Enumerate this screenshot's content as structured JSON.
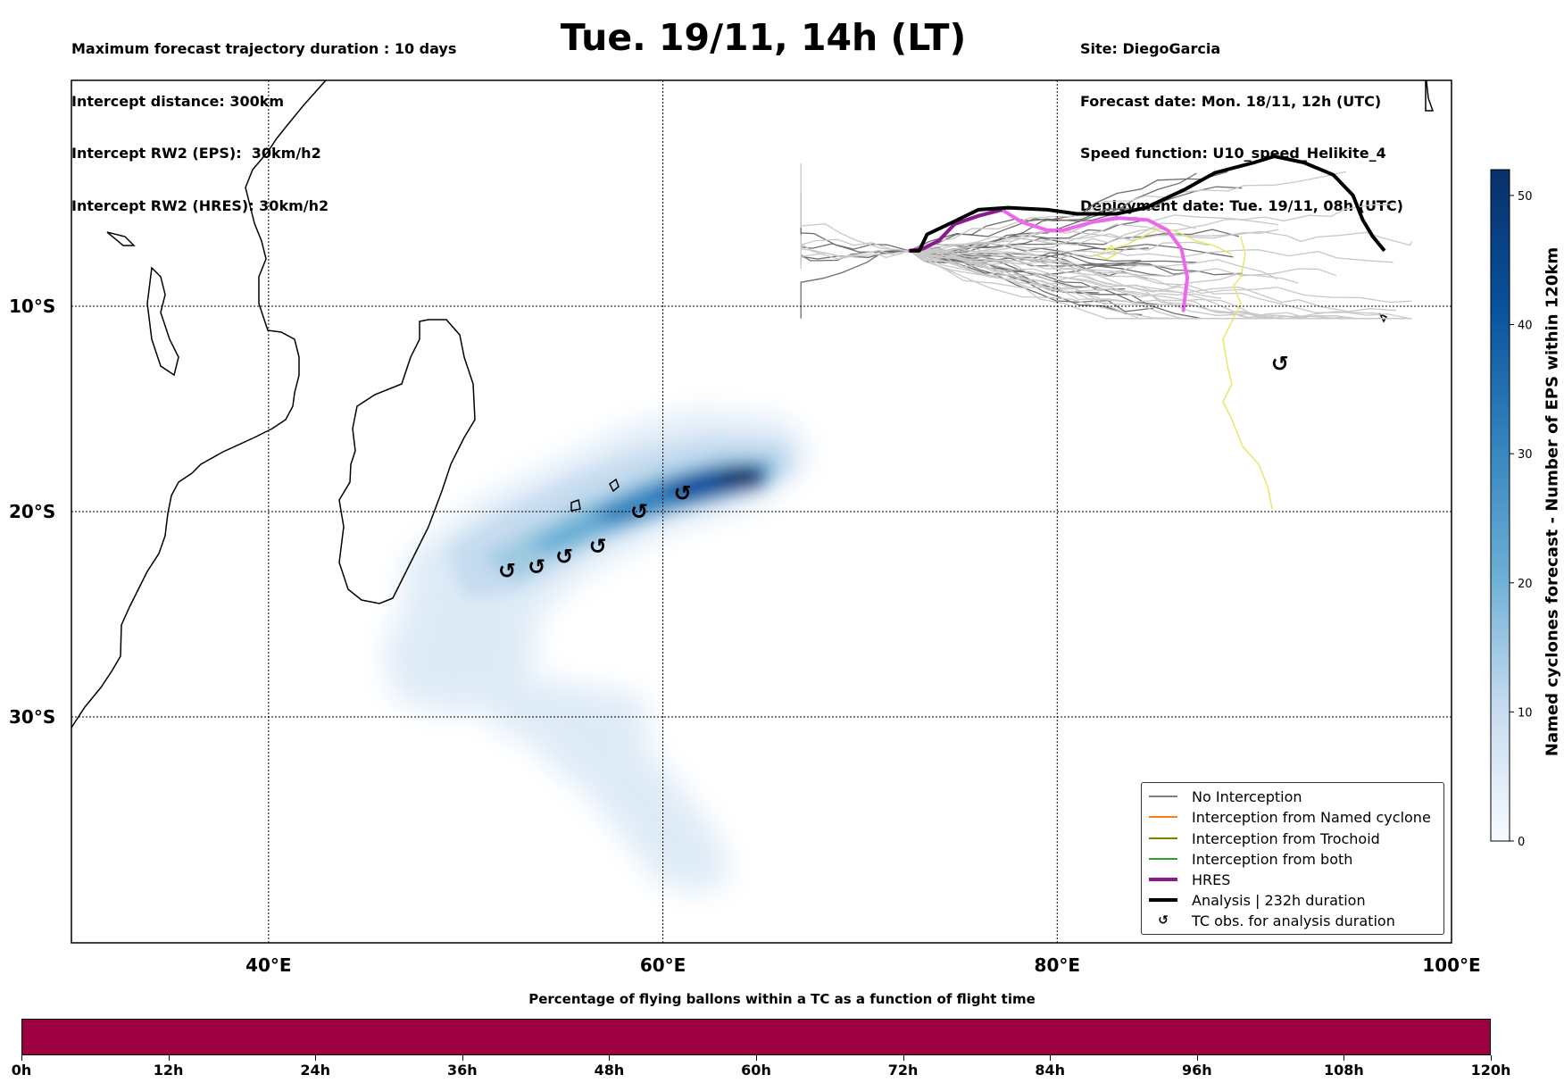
{
  "header": {
    "left_lines": [
      "Maximum forecast trajectory duration : 10 days",
      "Intercept distance: 300km",
      "Intercept RW2 (EPS):  30km/h2",
      "Intercept RW2 (HRES): 30km/h2"
    ],
    "title": "Tue. 19/11, 14h (LT)",
    "right_lines": [
      "Site: DiegoGarcia",
      "Forecast date: Mon. 18/11, 12h (UTC)",
      "Speed function: U10_speed_Helikite_4",
      "Deployment date: Tue. 19/11, 08h (UTC)"
    ]
  },
  "map": {
    "extent": {
      "lon_min": 30,
      "lon_max": 100,
      "lat_top": 1,
      "lat_bottom": -41
    },
    "lat_labels": [
      {
        "lat": -10,
        "text": "10°S"
      },
      {
        "lat": -20,
        "text": "20°S"
      },
      {
        "lat": -30,
        "text": "30°S"
      }
    ],
    "lon_labels": [
      {
        "lon": 40,
        "text": "40°E"
      },
      {
        "lon": 60,
        "text": "60°E"
      },
      {
        "lon": 80,
        "text": "80°E"
      },
      {
        "lon": 100,
        "text": "100°E"
      }
    ],
    "tc_symbol": "↺",
    "tc_obs": [
      {
        "lon": 52.1,
        "lat": -22.9
      },
      {
        "lon": 53.6,
        "lat": -22.7
      },
      {
        "lon": 55.0,
        "lat": -22.2
      },
      {
        "lon": 56.7,
        "lat": -21.7
      },
      {
        "lon": 58.8,
        "lat": -20.0
      },
      {
        "lon": 61.0,
        "lat": -19.1
      },
      {
        "lon": 91.3,
        "lat": -12.8
      }
    ],
    "analysis_track": [
      [
        72.5,
        -7.3
      ],
      [
        73.0,
        -7.3
      ],
      [
        73.4,
        -6.5
      ],
      [
        74.5,
        -6.0
      ],
      [
        76.0,
        -5.3
      ],
      [
        77.5,
        -5.2
      ],
      [
        79.5,
        -5.3
      ],
      [
        81.0,
        -5.5
      ],
      [
        83.0,
        -5.5
      ],
      [
        84.5,
        -5.2
      ],
      [
        86.5,
        -4.3
      ],
      [
        88.0,
        -3.5
      ],
      [
        90.0,
        -3.0
      ],
      [
        91.0,
        -2.7
      ],
      [
        92.5,
        -3.0
      ],
      [
        94.0,
        -3.6
      ],
      [
        95.0,
        -4.6
      ],
      [
        95.5,
        -5.8
      ],
      [
        96.0,
        -6.6
      ],
      [
        96.6,
        -7.3
      ]
    ],
    "hres_track": [
      [
        72.5,
        -7.3
      ],
      [
        73.2,
        -7.2
      ],
      [
        74.0,
        -6.8
      ],
      [
        74.8,
        -6.0
      ],
      [
        76.0,
        -5.6
      ],
      [
        77.2,
        -5.3
      ],
      [
        78.2,
        -5.9
      ],
      [
        79.5,
        -6.3
      ],
      [
        80.3,
        -6.3
      ],
      [
        81.8,
        -5.9
      ],
      [
        83.0,
        -5.7
      ],
      [
        84.6,
        -5.8
      ],
      [
        85.6,
        -6.3
      ],
      [
        86.3,
        -7.2
      ],
      [
        86.6,
        -8.6
      ],
      [
        86.4,
        -10.2
      ]
    ],
    "density_scale_max": 52
  },
  "legend": {
    "items": [
      {
        "label": "No Interception",
        "color": "#7f7f7f",
        "kind": "thin"
      },
      {
        "label": "Interception from Named cyclone",
        "color": "#ff7f0e",
        "kind": "thin"
      },
      {
        "label": "Interception from Trochoid",
        "color": "#808000",
        "kind": "thin"
      },
      {
        "label": "Interception from both",
        "color": "#2ca02c",
        "kind": "thin"
      },
      {
        "label": "HRES",
        "color": "#8b1a8b",
        "kind": "thick"
      },
      {
        "label": "Analysis | 232h duration",
        "color": "#000000",
        "kind": "thick"
      },
      {
        "label": "TC obs. for analysis duration",
        "color": "#000000",
        "kind": "symbol"
      }
    ]
  },
  "colorbar": {
    "title": "Named cyclones forecast - Number of EPS within 120km",
    "ticks": [
      "0",
      "10",
      "20",
      "30",
      "40",
      "50"
    ],
    "min": 0,
    "max": 52
  },
  "bottom": {
    "title": "Percentage of flying ballons within a TC as a function of flight time",
    "bar_color": "#9e0142",
    "ticks": [
      "0h",
      "12h",
      "24h",
      "36h",
      "48h",
      "60h",
      "72h",
      "84h",
      "96h",
      "108h",
      "120h"
    ]
  }
}
